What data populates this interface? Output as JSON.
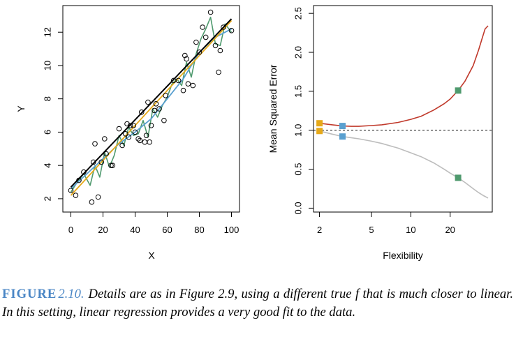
{
  "caption": {
    "label": "FIGURE",
    "number": "2.10.",
    "text": "Details are as in Figure 2.9, using a different true f that is much closer to linear. In this setting, linear regression provides a very good fit to the data."
  },
  "colors": {
    "true_f": "#000000",
    "linear_fit": "#e6a919",
    "spline_smooth": "#5aa0d0",
    "spline_wiggly": "#4f9a6e",
    "test_mse": "#c0392b",
    "train_mse": "#bdbdbd",
    "irreducible": "#555555"
  },
  "chart_data": [
    {
      "type": "scatter",
      "title": "",
      "xlabel": "X",
      "ylabel": "Y",
      "xlim": [
        -5,
        105
      ],
      "ylim": [
        1.2,
        13.6
      ],
      "xticks": [
        "0",
        "20",
        "40",
        "60",
        "80",
        "100"
      ],
      "yticks": [
        "2",
        "4",
        "6",
        "8",
        "10",
        "12"
      ],
      "points": [
        [
          0,
          2.5
        ],
        [
          3,
          2.2
        ],
        [
          5,
          3.1
        ],
        [
          8,
          3.6
        ],
        [
          13,
          1.8
        ],
        [
          14,
          4.2
        ],
        [
          15,
          5.3
        ],
        [
          17,
          2.1
        ],
        [
          19,
          4.2
        ],
        [
          21,
          5.6
        ],
        [
          22,
          4.7
        ],
        [
          25,
          4.0
        ],
        [
          26,
          4.0
        ],
        [
          30,
          6.2
        ],
        [
          32,
          5.2
        ],
        [
          34,
          5.9
        ],
        [
          35,
          6.5
        ],
        [
          36,
          5.7
        ],
        [
          37,
          6.4
        ],
        [
          39,
          6.4
        ],
        [
          40,
          6.0
        ],
        [
          42,
          5.6
        ],
        [
          43,
          5.5
        ],
        [
          44,
          7.2
        ],
        [
          46,
          5.4
        ],
        [
          47,
          5.8
        ],
        [
          48,
          7.8
        ],
        [
          49,
          5.4
        ],
        [
          50,
          6.4
        ],
        [
          52,
          7.3
        ],
        [
          53,
          7.7
        ],
        [
          55,
          7.4
        ],
        [
          58,
          6.7
        ],
        [
          59,
          8.2
        ],
        [
          64,
          9.1
        ],
        [
          67,
          9.1
        ],
        [
          70,
          8.5
        ],
        [
          71,
          10.6
        ],
        [
          72,
          10.4
        ],
        [
          73,
          8.9
        ],
        [
          76,
          8.8
        ],
        [
          78,
          11.4
        ],
        [
          80,
          10.8
        ],
        [
          82,
          12.3
        ],
        [
          84,
          11.7
        ],
        [
          87,
          13.2
        ],
        [
          90,
          11.2
        ],
        [
          92,
          9.6
        ],
        [
          93,
          10.9
        ],
        [
          95,
          12.3
        ],
        [
          100,
          12.1
        ]
      ],
      "series": [
        {
          "curve": "true_f",
          "x": [
            0,
            100
          ],
          "y": [
            2.7,
            12.8
          ]
        },
        {
          "curve": "linear_fit",
          "x": [
            0,
            100
          ],
          "y": [
            2.2,
            12.7
          ]
        },
        {
          "curve": "spline_smooth",
          "x": [
            0,
            10,
            20,
            30,
            40,
            50,
            60,
            70,
            80,
            90,
            100
          ],
          "y": [
            2.6,
            3.5,
            4.4,
            5.3,
            6.0,
            6.8,
            8.0,
            9.2,
            10.8,
            11.7,
            12.2
          ]
        },
        {
          "curve": "spline_wiggly",
          "x": [
            0,
            4,
            8,
            12,
            15,
            18,
            21,
            24,
            27,
            30,
            33,
            36,
            39,
            42,
            45,
            48,
            51,
            54,
            57,
            60,
            63,
            66,
            69,
            72,
            75,
            78,
            81,
            84,
            87,
            90,
            93,
            96,
            100
          ],
          "y": [
            2.4,
            3.0,
            3.5,
            2.8,
            4.0,
            3.3,
            4.8,
            3.9,
            4.6,
            5.8,
            5.2,
            6.3,
            5.8,
            5.9,
            6.7,
            5.7,
            7.4,
            6.9,
            7.6,
            8.1,
            8.9,
            9.2,
            8.8,
            10.2,
            9.3,
            10.7,
            11.6,
            12.2,
            12.9,
            11.3,
            11.2,
            12.5,
            12.0
          ]
        }
      ]
    },
    {
      "type": "line",
      "title": "",
      "xlabel": "Flexibility",
      "ylabel": "Mean Squared Error",
      "xscale": "log",
      "xlim": [
        1.8,
        42
      ],
      "ylim": [
        -0.05,
        2.6
      ],
      "xticks": [
        "2",
        "5",
        "10",
        "20"
      ],
      "yticks": [
        "0.0",
        "0.5",
        "1.0",
        "1.5",
        "2.0",
        "2.5"
      ],
      "series": [
        {
          "curve": "test_mse",
          "x": [
            2,
            2.5,
            3,
            3.5,
            4,
            5,
            6,
            8,
            10,
            12,
            15,
            18,
            20,
            23,
            26,
            30,
            33,
            35,
            37,
            39
          ],
          "y": [
            1.09,
            1.07,
            1.055,
            1.05,
            1.05,
            1.06,
            1.07,
            1.1,
            1.14,
            1.18,
            1.26,
            1.34,
            1.4,
            1.51,
            1.63,
            1.83,
            2.03,
            2.17,
            2.3,
            2.34
          ]
        },
        {
          "curve": "train_mse",
          "x": [
            2,
            2.5,
            3,
            4,
            5,
            6,
            8,
            10,
            12,
            15,
            18,
            20,
            23,
            26,
            30,
            33,
            36,
            39
          ],
          "y": [
            0.99,
            0.95,
            0.92,
            0.89,
            0.86,
            0.83,
            0.77,
            0.71,
            0.66,
            0.58,
            0.5,
            0.45,
            0.39,
            0.33,
            0.25,
            0.2,
            0.16,
            0.13
          ]
        },
        {
          "curve": "irreducible",
          "x": [
            1.8,
            42
          ],
          "y": [
            1.0,
            1.0
          ]
        }
      ],
      "markers": [
        {
          "curve": "linear_fit",
          "x": 2,
          "y": 1.09
        },
        {
          "curve": "linear_fit",
          "x": 2,
          "y": 0.99
        },
        {
          "curve": "spline_smooth",
          "x": 3,
          "y": 1.055
        },
        {
          "curve": "spline_smooth",
          "x": 3,
          "y": 0.92
        },
        {
          "curve": "spline_wiggly",
          "x": 23,
          "y": 1.51
        },
        {
          "curve": "spline_wiggly",
          "x": 23,
          "y": 0.39
        }
      ]
    }
  ]
}
